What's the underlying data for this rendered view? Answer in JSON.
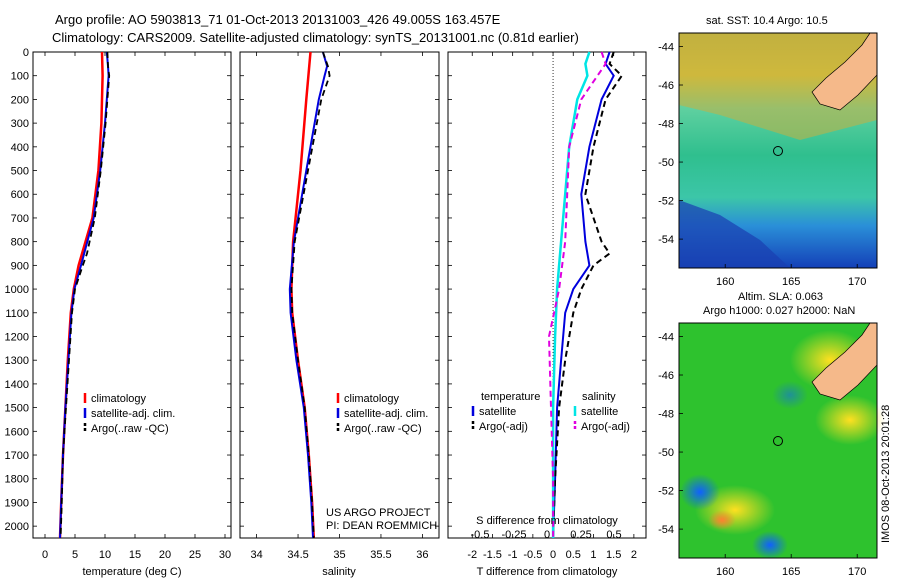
{
  "header": {
    "line1": "Argo profile: AO 5903813_71 01-Oct-2013 20131003_426 49.005S 163.457E",
    "line2": "Climatology: CARS2009. Satellite-adjusted climatology: synTS_20131001.nc (0.81d earlier)"
  },
  "colors": {
    "climatology": "#ff0000",
    "satellite": "#0000dd",
    "argo": "#000000",
    "salinity_satellite": "#00e5e5",
    "salinity_argo": "#e000e0",
    "land": "#f5b98a"
  },
  "depth_ticks": [
    "0",
    "100",
    "200",
    "300",
    "400",
    "500",
    "600",
    "700",
    "800",
    "900",
    "1000",
    "1100",
    "1200",
    "1300",
    "1400",
    "1500",
    "1600",
    "1700",
    "1800",
    "1900",
    "2000"
  ],
  "legend": {
    "climatology": "climatology",
    "satellite_adj": "satellite-adj. clim.",
    "argo": "Argo(..raw -QC)",
    "temperature": "temperature",
    "salinity": "salinity",
    "satellite": "satellite",
    "argo_adj": "Argo(-adj)"
  },
  "credits": {
    "line1": "US ARGO PROJECT",
    "line2": "PI: DEAN ROEMMICH"
  },
  "imos_stamp": "IMOS 08-Oct-2013 20:01:28",
  "chart_data": [
    {
      "type": "line",
      "xlabel": "temperature (deg C)",
      "xlim": [
        -2,
        31
      ],
      "ylim": [
        2050,
        0
      ],
      "xticks": [
        "0",
        "5",
        "10",
        "15",
        "20",
        "25",
        "30"
      ],
      "series": [
        {
          "name": "climatology",
          "depth": [
            0,
            100,
            300,
            500,
            700,
            900,
            1000,
            1100,
            1300,
            1500,
            1700,
            1900,
            2050
          ],
          "values": [
            9.5,
            9.6,
            9.4,
            8.9,
            7.9,
            5.6,
            4.8,
            4.3,
            3.8,
            3.4,
            3.0,
            2.7,
            2.5
          ]
        },
        {
          "name": "satellite-adj. clim.",
          "depth": [
            0,
            60,
            100,
            300,
            500,
            700,
            900,
            1000,
            1100,
            1300,
            1500,
            1700,
            1900,
            2050
          ],
          "values": [
            10.3,
            10.5,
            10.6,
            10.0,
            9.2,
            8.1,
            6.0,
            4.9,
            4.4,
            3.9,
            3.4,
            3.0,
            2.7,
            2.5
          ]
        },
        {
          "name": "Argo(..raw -QC)",
          "depth": [
            0,
            60,
            100,
            300,
            500,
            700,
            850,
            900,
            1000,
            1100,
            1300,
            1500,
            1700,
            1900,
            2050
          ],
          "values": [
            10.4,
            10.5,
            10.7,
            10.1,
            9.3,
            8.3,
            7.0,
            6.3,
            5.0,
            4.5,
            4.0,
            3.5,
            3.0,
            2.8,
            2.6
          ]
        }
      ]
    },
    {
      "type": "line",
      "xlabel": "salinity",
      "xlim": [
        33.8,
        36.2
      ],
      "ylim": [
        2050,
        0
      ],
      "xticks": [
        "34",
        "34.5",
        "35",
        "35.5",
        "36"
      ],
      "series": [
        {
          "name": "climatology",
          "depth": [
            0,
            200,
            500,
            800,
            1000,
            1100,
            1300,
            1500,
            1700,
            1900,
            2050
          ],
          "values": [
            34.65,
            34.6,
            34.53,
            34.44,
            34.42,
            34.43,
            34.5,
            34.58,
            34.63,
            34.67,
            34.69
          ]
        },
        {
          "name": "satellite-adj. clim.",
          "depth": [
            0,
            60,
            100,
            200,
            500,
            800,
            1000,
            1100,
            1300,
            1500,
            1700,
            1900,
            2050
          ],
          "values": [
            34.8,
            34.85,
            34.82,
            34.75,
            34.6,
            34.45,
            34.4,
            34.41,
            34.48,
            34.57,
            34.62,
            34.66,
            34.68
          ]
        },
        {
          "name": "Argo(..raw -QC)",
          "depth": [
            0,
            60,
            100,
            200,
            500,
            800,
            1000,
            1100,
            1300,
            1500,
            1700,
            1900,
            2050
          ],
          "values": [
            34.8,
            34.86,
            34.88,
            34.78,
            34.62,
            34.46,
            34.42,
            34.43,
            34.5,
            34.58,
            34.63,
            34.67,
            34.69
          ]
        }
      ]
    },
    {
      "type": "line",
      "xlabel": "T difference from climatology",
      "xlabel_top": "S difference from climatology",
      "xlim": [
        -2.6,
        2.3
      ],
      "ylim": [
        2050,
        0
      ],
      "xticks": [
        "-2",
        "-1.5",
        "-1",
        "-0.5",
        "0",
        "0.5",
        "1",
        "1.5",
        "2"
      ],
      "s_ticks": [
        "-0.5",
        "-0.25",
        "0",
        "0.25",
        "0.5"
      ],
      "series": [
        {
          "name": "temperature satellite",
          "depth": [
            0,
            50,
            100,
            200,
            400,
            600,
            800,
            900,
            1000,
            1100,
            1300,
            1500,
            1800,
            2050
          ],
          "values": [
            1.4,
            1.3,
            1.5,
            1.2,
            0.9,
            0.7,
            0.8,
            0.9,
            0.5,
            0.3,
            0.2,
            0.1,
            0.05,
            0.0
          ]
        },
        {
          "name": "temperature Argo(-adj)",
          "depth": [
            0,
            50,
            100,
            200,
            400,
            600,
            800,
            850,
            900,
            1000,
            1100,
            1300,
            1500,
            1800,
            2050
          ],
          "values": [
            1.5,
            1.4,
            1.7,
            1.3,
            1.0,
            0.8,
            1.2,
            1.4,
            1.0,
            0.7,
            0.5,
            0.3,
            0.15,
            0.05,
            0.0
          ]
        },
        {
          "name": "salinity satellite",
          "depth": [
            0,
            50,
            100,
            200,
            400,
            600,
            800,
            1000,
            1200,
            1500,
            1800,
            2050
          ],
          "values": [
            0.9,
            0.8,
            0.85,
            0.6,
            0.4,
            0.3,
            0.2,
            0.1,
            0.05,
            0.0,
            0.0,
            0.0
          ]
        },
        {
          "name": "salinity Argo(-adj)",
          "depth": [
            0,
            50,
            100,
            200,
            400,
            600,
            800,
            1000,
            1200,
            1500,
            1800,
            2050
          ],
          "values": [
            1.2,
            1.3,
            1.1,
            0.7,
            0.4,
            0.35,
            0.3,
            0.15,
            -0.1,
            -0.05,
            0.0,
            0.0
          ]
        }
      ]
    },
    {
      "type": "heatmap",
      "title": "sat. SST: 10.4 Argo: 10.5",
      "xticks": [
        "160",
        "165",
        "170"
      ],
      "yticks": [
        "-44",
        "-46",
        "-48",
        "-50",
        "-52",
        "-54"
      ],
      "xlim": [
        156.5,
        171.5
      ],
      "ylim": [
        -55.5,
        -43.3
      ],
      "argo_position": [
        163.457,
        -49.005
      ]
    },
    {
      "type": "heatmap",
      "title": "Altim. SLA: 0.063",
      "subtitle": "Argo h1000: 0.027 h2000: NaN",
      "xticks": [
        "160",
        "165",
        "170"
      ],
      "yticks": [
        "-44",
        "-46",
        "-48",
        "-50",
        "-52",
        "-54"
      ],
      "xlim": [
        156.5,
        171.5
      ],
      "ylim": [
        -55.5,
        -43.3
      ],
      "argo_position": [
        163.457,
        -49.005
      ]
    }
  ]
}
